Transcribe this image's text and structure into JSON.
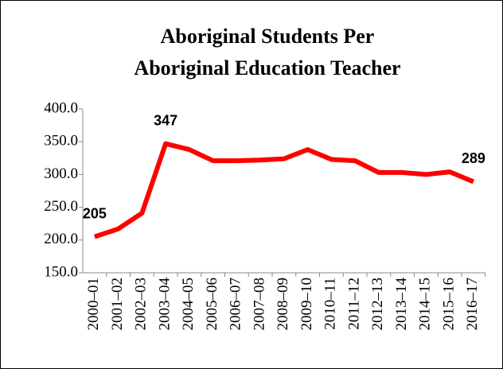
{
  "chart_data": {
    "type": "line",
    "title": [
      "Aboriginal Students Per",
      "Aboriginal Education Teacher"
    ],
    "categories": [
      "2000–01",
      "2001–02",
      "2002–03",
      "2003–04",
      "2004–05",
      "2005–06",
      "2006–07",
      "2007–08",
      "2008–09",
      "2009–10",
      "2010–11",
      "2011–12",
      "2012–13",
      "2013–14",
      "2014–15",
      "2015–16",
      "2016–17"
    ],
    "series": [
      {
        "color": "#ff0000",
        "values": [
          205,
          217,
          241,
          347,
          338,
          321,
          321,
          322,
          324,
          338,
          323,
          321,
          303,
          303,
          300,
          304,
          289
        ],
        "value_labels": [
          "205",
          null,
          null,
          "347",
          null,
          null,
          null,
          null,
          null,
          null,
          null,
          null,
          null,
          null,
          null,
          null,
          "289"
        ]
      }
    ],
    "ylim": [
      150,
      400
    ],
    "yticks": [
      {
        "value": 150,
        "label": "150.0"
      },
      {
        "value": 200,
        "label": "200.0"
      },
      {
        "value": 250,
        "label": "250.0"
      },
      {
        "value": 300,
        "label": "300.0"
      },
      {
        "value": 350,
        "label": "350.0"
      },
      {
        "value": 400,
        "label": "400.0"
      }
    ],
    "grid": false
  }
}
